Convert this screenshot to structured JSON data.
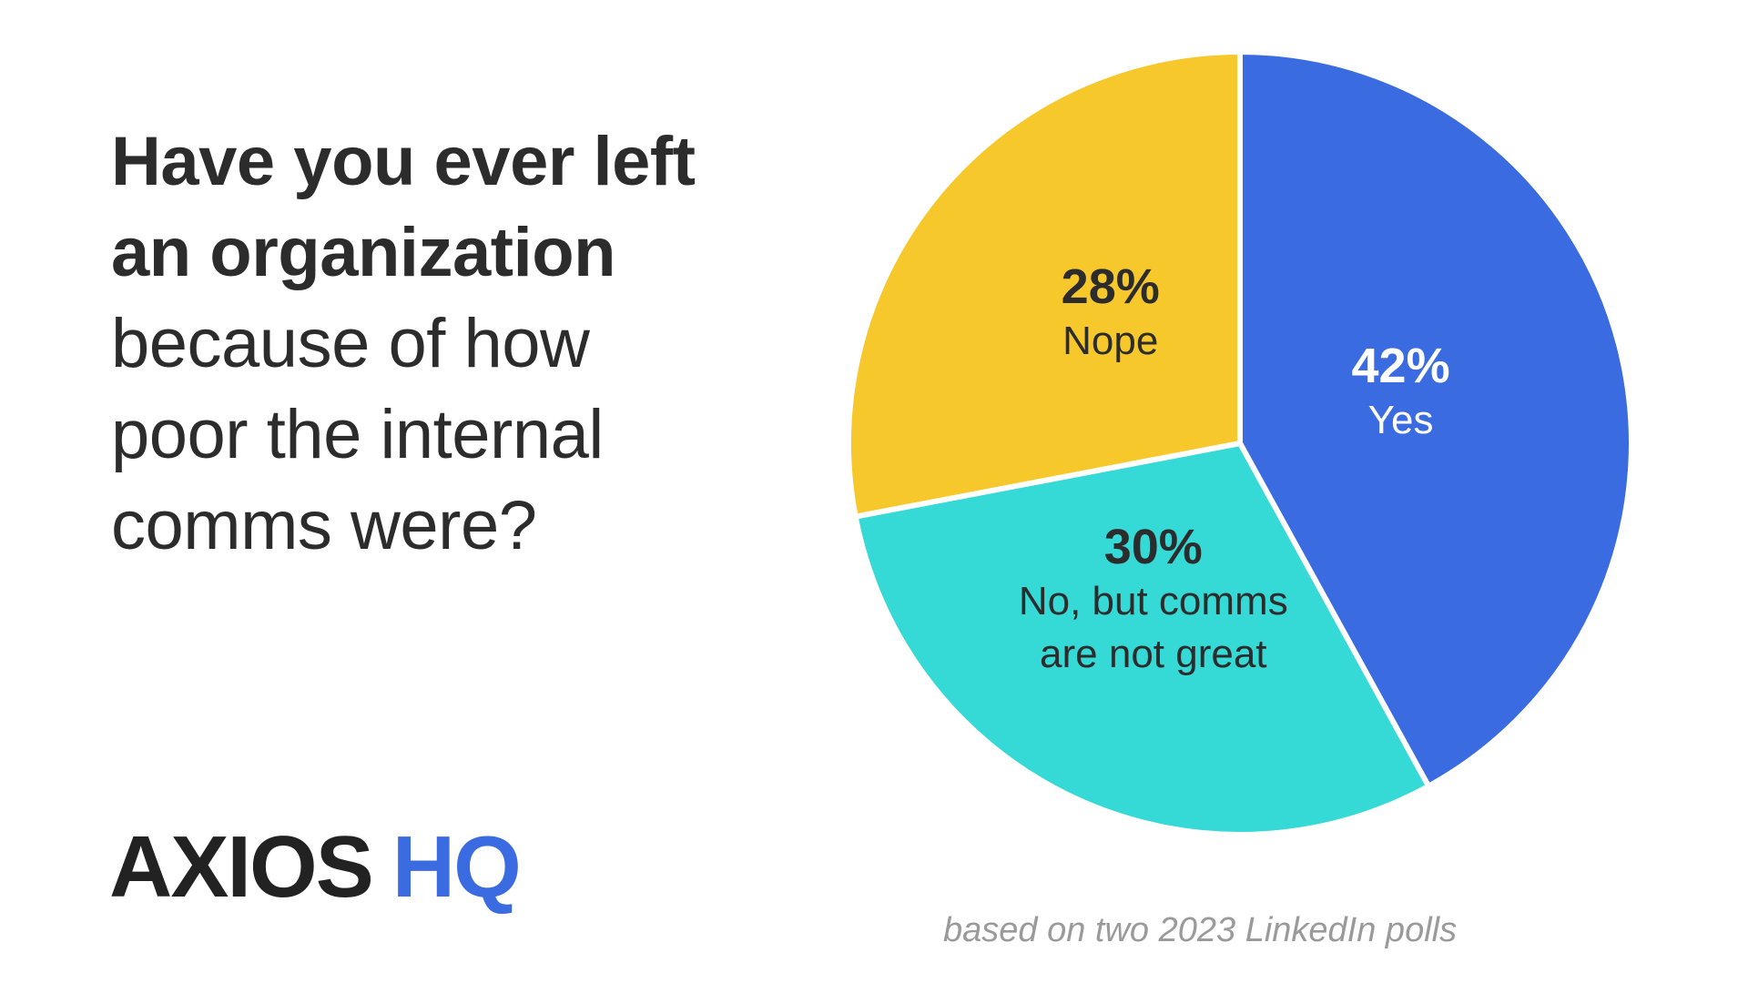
{
  "headline": {
    "lines": [
      {
        "text": "Have you ever left",
        "weight": "bold"
      },
      {
        "text": "an organization",
        "weight": "bold"
      },
      {
        "text": "because of how",
        "weight": "normal"
      },
      {
        "text": "poor the internal",
        "weight": "normal"
      },
      {
        "text": "comms were?",
        "weight": "normal"
      }
    ]
  },
  "logo": {
    "brand": "AXIOS",
    "product": "HQ"
  },
  "source_note": "based on two 2023 LinkedIn polls",
  "colors": {
    "text": "#2c2c2c",
    "yes": "#3b6be0",
    "no_not_great": "#35d9d6",
    "nope": "#f7c82b",
    "slice_border": "#ffffff",
    "source_note": "#9a9a9a",
    "logo_accent": "#3b6be0"
  },
  "chart_data": {
    "type": "pie",
    "title": "Have you ever left an organization because of how poor the internal comms were?",
    "start": "12 o'clock",
    "direction": "clockwise",
    "slices": [
      {
        "label": "Yes",
        "percent_label": "42%",
        "value": 42,
        "color": "#3b6be0",
        "label_color": "#ffffff"
      },
      {
        "label": "No, but comms\nare not great",
        "percent_label": "30%",
        "value": 30,
        "color": "#35d9d6",
        "label_color": "#2c2c2c"
      },
      {
        "label": "Nope",
        "percent_label": "28%",
        "value": 28,
        "color": "#f7c82b",
        "label_color": "#2c2c2c"
      }
    ]
  }
}
